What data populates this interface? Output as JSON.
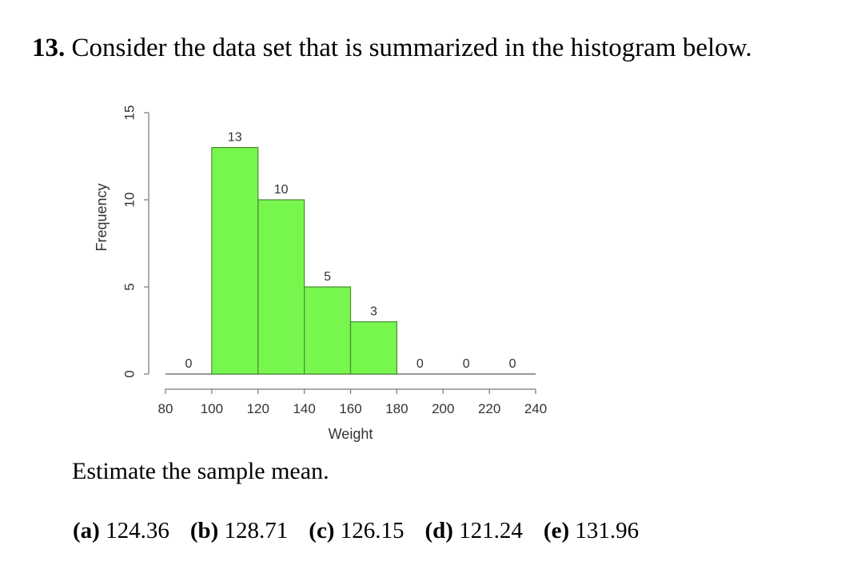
{
  "question": {
    "number": "13.",
    "text": "Consider the data set that is summarized in the histogram below.",
    "prompt": "Estimate the sample mean.",
    "choices": [
      {
        "label": "(a)",
        "value": "124.36"
      },
      {
        "label": "(b)",
        "value": "128.71"
      },
      {
        "label": "(c)",
        "value": "126.15"
      },
      {
        "label": "(d)",
        "value": "121.24"
      },
      {
        "label": "(e)",
        "value": "131.96"
      }
    ]
  },
  "chart_data": {
    "type": "bar",
    "subtype": "histogram",
    "title": "",
    "xlabel": "Weight",
    "ylabel": "Frequency",
    "bin_edges": [
      80,
      100,
      120,
      140,
      160,
      180,
      200,
      220,
      240
    ],
    "categories": [
      "80-100",
      "100-120",
      "120-140",
      "140-160",
      "160-180",
      "180-200",
      "200-220",
      "220-240"
    ],
    "values": [
      0,
      13,
      10,
      5,
      3,
      0,
      0,
      0
    ],
    "data_labels": [
      "0",
      "13",
      "10",
      "5",
      "3",
      "0",
      "0",
      "0"
    ],
    "xticks": [
      "80",
      "100",
      "120",
      "140",
      "160",
      "180",
      "200",
      "220",
      "240"
    ],
    "yticks": [
      "0",
      "5",
      "10",
      "15"
    ],
    "xlim": [
      80,
      240
    ],
    "ylim": [
      0,
      15
    ],
    "grid": false,
    "bar_color": "#77f74d",
    "bar_edge_color": "#4a8a36"
  }
}
